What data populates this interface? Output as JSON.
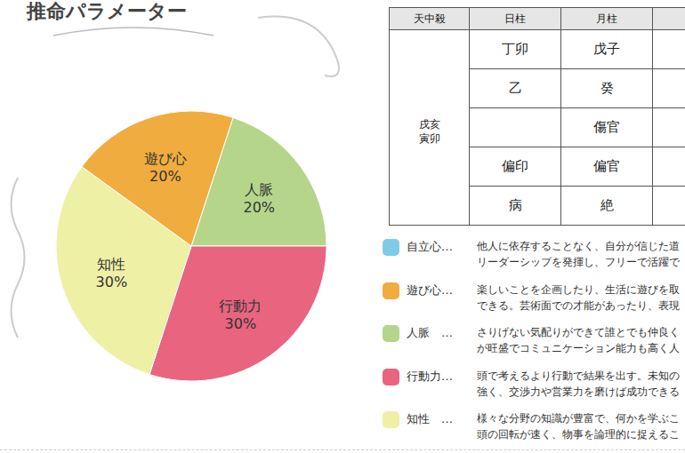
{
  "chart_data": {
    "type": "pie",
    "title": "推命パラメーター",
    "categories": [
      "人脈",
      "行動力",
      "知性",
      "遊び心"
    ],
    "values": [
      20,
      30,
      30,
      20
    ],
    "value_labels": [
      "20%",
      "30%",
      "30%",
      "20%"
    ],
    "colors": [
      "#b5d68a",
      "#e8647f",
      "#eef0a6",
      "#f0ac3e"
    ],
    "data_labels": true
  },
  "table": {
    "header": [
      "天中殺",
      "日柱",
      "月柱"
    ],
    "tenchusatsu": [
      "戌亥",
      "寅卯"
    ],
    "rows": [
      [
        "丁卯",
        "戊子"
      ],
      [
        "乙",
        "癸"
      ],
      [
        null,
        "傷官"
      ],
      [
        "偏印",
        "偏官"
      ],
      [
        "病",
        "絶"
      ]
    ]
  },
  "descriptions": [
    {
      "label": "自立心…",
      "color": "#7ecbe8",
      "lines": [
        "他人に依存することなく、自分が信じた道",
        "リーダーシップを発揮し、フリーで活躍で"
      ]
    },
    {
      "label": "遊び心…",
      "color": "#f0ac3e",
      "lines": [
        "楽しいことを企画したり、生活に遊びを取",
        "できる。芸術面での才能があったり、表現"
      ]
    },
    {
      "label": "人脈　…",
      "color": "#b5d68a",
      "lines": [
        "さりげない気配りができて誰とでも仲良く",
        "が旺盛でコミュニケーション能力も高く人"
      ]
    },
    {
      "label": "行動力…",
      "color": "#e8647f",
      "lines": [
        "頭で考えるより行動で結果を出す。未知の",
        "強く、交渉力や営業力を磨けば成功できる"
      ]
    },
    {
      "label": "知性　…",
      "color": "#eef0a6",
      "lines": [
        "様々な分野の知識が豊富で、何かを学ぶこ",
        "頭の回転が速く、物事を論理的に捉えるこ"
      ]
    }
  ]
}
